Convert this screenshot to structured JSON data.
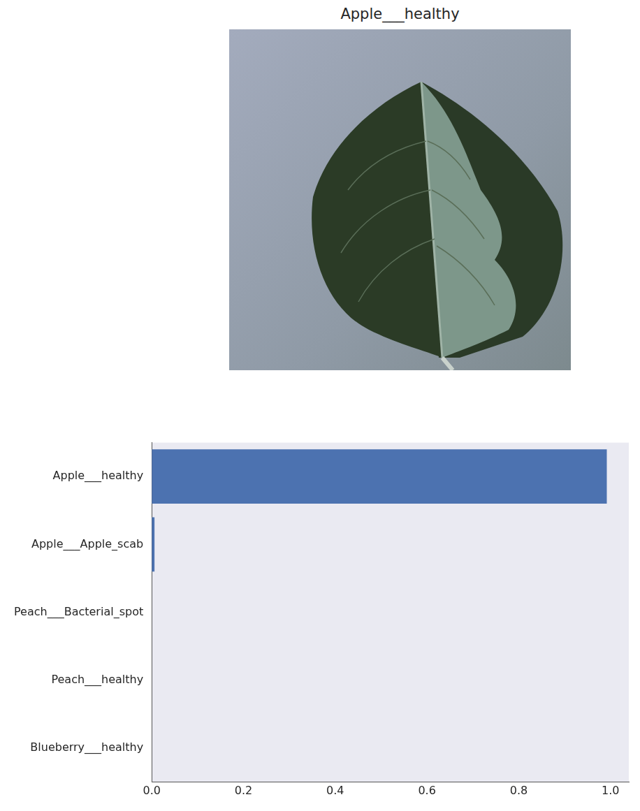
{
  "image": {
    "title": "Apple___healthy"
  },
  "chart_data": {
    "type": "bar",
    "orientation": "horizontal",
    "categories": [
      "Apple___healthy",
      "Apple___Apple_scab",
      "Peach___Bacterial_spot",
      "Peach___healthy",
      "Blueberry___healthy"
    ],
    "values": [
      0.992,
      0.006,
      0,
      0,
      0
    ],
    "color": "#4c72b0",
    "xlim": [
      0,
      1.04
    ],
    "xticks": [
      {
        "value": 0,
        "label": "0.0"
      },
      {
        "value": 0.2,
        "label": "0.2"
      },
      {
        "value": 0.4,
        "label": "0.4"
      },
      {
        "value": 0.6,
        "label": "0.6"
      },
      {
        "value": 0.8,
        "label": "0.8"
      },
      {
        "value": 1,
        "label": "1.0"
      }
    ],
    "grid": false
  }
}
